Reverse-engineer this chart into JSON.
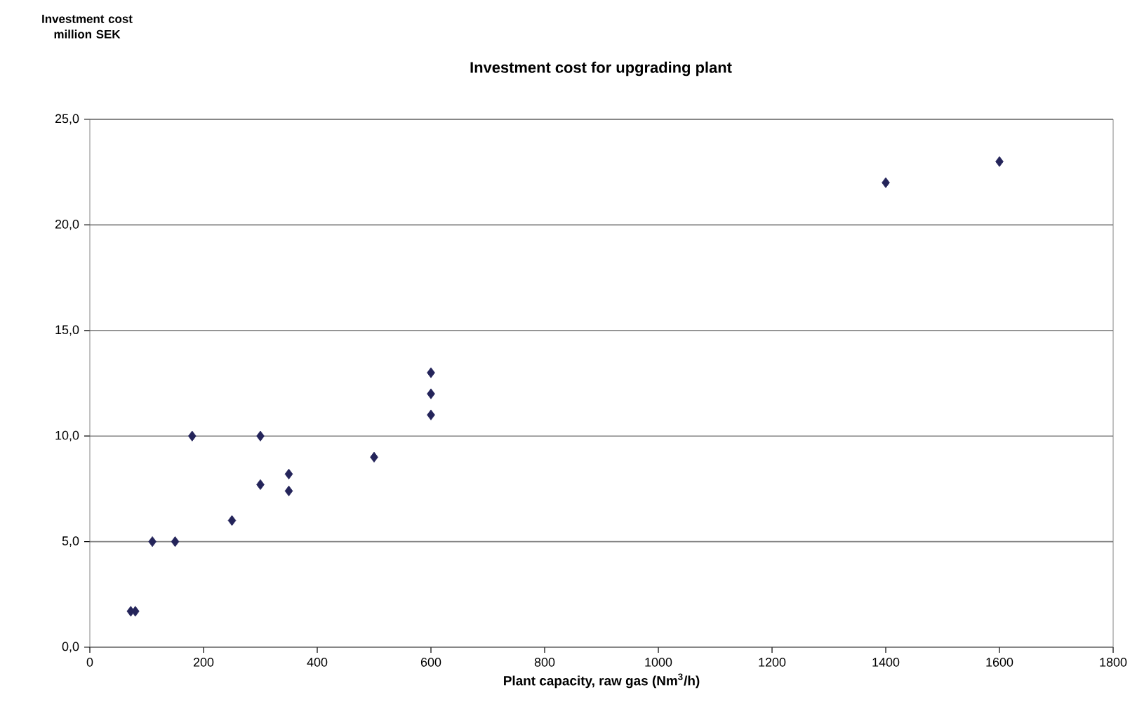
{
  "chart_data": {
    "type": "scatter",
    "title": "Investment cost for upgrading plant",
    "xlabel": "Plant capacity, raw gas (Nm$^{3}$/h)",
    "annotations": [
      "Investment cost million SEK"
    ],
    "x": [
      72,
      80,
      110,
      150,
      180,
      250,
      300,
      300,
      350,
      350,
      500,
      600,
      600,
      600,
      1400,
      1600
    ],
    "values": [
      1.7,
      1.7,
      5.0,
      5.0,
      10.0,
      6.0,
      10.0,
      7.7,
      8.2,
      7.4,
      9.0,
      11.0,
      12.0,
      13.0,
      22.0,
      23.0
    ],
    "color": "#24245a",
    "marker": "diamond",
    "grid": "y",
    "xlim": [
      0,
      1800
    ],
    "ylim": [
      0,
      25
    ],
    "xticks": [
      0,
      200,
      400,
      600,
      800,
      1000,
      1200,
      1400,
      1600,
      1800
    ],
    "yticks": [
      {
        "value": 0,
        "label": "0,0"
      },
      {
        "value": 5,
        "label": "5,0"
      },
      {
        "value": 10,
        "label": "10,0"
      },
      {
        "value": 15,
        "label": "15,0"
      },
      {
        "value": 20,
        "label": "20,0"
      },
      {
        "value": 25,
        "label": "25,0"
      }
    ]
  }
}
